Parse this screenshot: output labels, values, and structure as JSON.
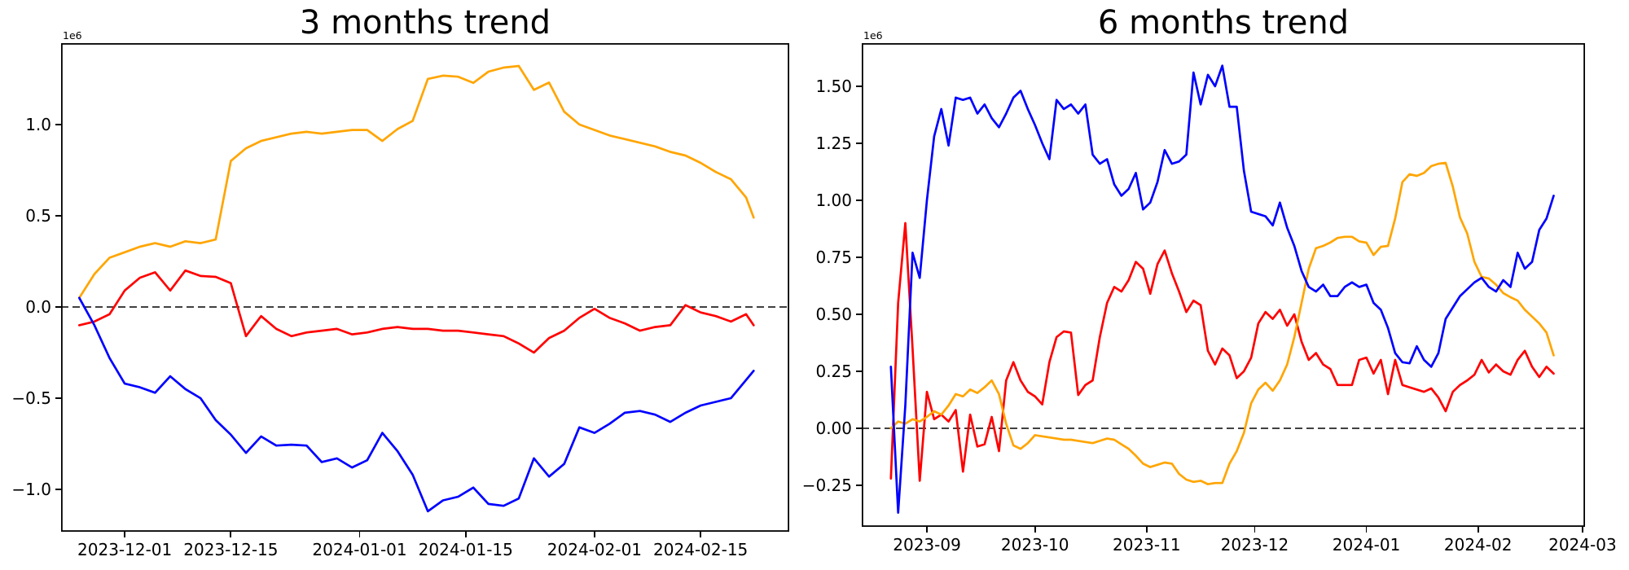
{
  "figure": {
    "background": "#ffffff"
  },
  "chart_data": [
    {
      "type": "line",
      "title": "3 months trend",
      "offset_label": "1e6",
      "x_unit": "days since 2023-11-25",
      "xlim": [
        -2.4,
        93.7
      ],
      "ylim": [
        -1.232,
        1.446
      ],
      "grid": false,
      "legend": null,
      "zero_line": {
        "y": 0,
        "style": "dashed",
        "color": "#000000"
      },
      "x": [
        0,
        2,
        4,
        6,
        8,
        10,
        12,
        14,
        16,
        18,
        20,
        22,
        24,
        26,
        28,
        30,
        32,
        34,
        36,
        38,
        40,
        42,
        44,
        46,
        48,
        50,
        52,
        54,
        56,
        58,
        60,
        62,
        64,
        66,
        68,
        70,
        72,
        74,
        76,
        78,
        80,
        82,
        84,
        86,
        88,
        89
      ],
      "series": [
        {
          "name": "red",
          "color": "#ff0000",
          "values": [
            -0.1,
            -0.08,
            -0.04,
            0.09,
            0.16,
            0.19,
            0.09,
            0.2,
            0.17,
            0.165,
            0.13,
            -0.16,
            -0.05,
            -0.12,
            -0.16,
            -0.14,
            -0.13,
            -0.12,
            -0.15,
            -0.14,
            -0.12,
            -0.11,
            -0.12,
            -0.12,
            -0.13,
            -0.13,
            -0.14,
            -0.15,
            -0.16,
            -0.2,
            -0.25,
            -0.17,
            -0.13,
            -0.06,
            -0.01,
            -0.06,
            -0.09,
            -0.13,
            -0.11,
            -0.1,
            0.01,
            -0.03,
            -0.05,
            -0.08,
            -0.04,
            -0.1
          ]
        },
        {
          "name": "orange",
          "color": "#ffa500",
          "values": [
            0.05,
            0.18,
            0.27,
            0.3,
            0.33,
            0.35,
            0.33,
            0.36,
            0.35,
            0.37,
            0.8,
            0.87,
            0.91,
            0.93,
            0.95,
            0.96,
            0.95,
            0.96,
            0.97,
            0.97,
            0.91,
            0.975,
            1.02,
            1.25,
            1.268,
            1.262,
            1.228,
            1.29,
            1.312,
            1.321,
            1.19,
            1.23,
            1.07,
            1.0,
            0.97,
            0.94,
            0.92,
            0.9,
            0.88,
            0.85,
            0.83,
            0.79,
            0.74,
            0.7,
            0.6,
            0.49
          ]
        },
        {
          "name": "blue",
          "color": "#0000ff",
          "values": [
            0.05,
            -0.1,
            -0.28,
            -0.42,
            -0.44,
            -0.47,
            -0.38,
            -0.45,
            -0.5,
            -0.62,
            -0.7,
            -0.8,
            -0.71,
            -0.76,
            -0.755,
            -0.76,
            -0.85,
            -0.83,
            -0.88,
            -0.84,
            -0.69,
            -0.79,
            -0.92,
            -1.12,
            -1.06,
            -1.04,
            -0.99,
            -1.08,
            -1.09,
            -1.05,
            -0.83,
            -0.93,
            -0.86,
            -0.66,
            -0.69,
            -0.64,
            -0.58,
            -0.57,
            -0.59,
            -0.63,
            -0.58,
            -0.54,
            -0.52,
            -0.5,
            -0.4,
            -0.35
          ]
        }
      ],
      "xticks": [
        {
          "label": "2023-12-01",
          "x": 6
        },
        {
          "label": "2023-12-15",
          "x": 20
        },
        {
          "label": "2024-01-01",
          "x": 37
        },
        {
          "label": "2024-01-15",
          "x": 51
        },
        {
          "label": "2024-02-01",
          "x": 68
        },
        {
          "label": "2024-02-15",
          "x": 82
        }
      ],
      "yticks": [
        {
          "label": "1.0",
          "y": 1.0
        },
        {
          "label": "0.5",
          "y": 0.5
        },
        {
          "label": "0.0",
          "y": 0.0
        },
        {
          "label": "−0.5",
          "y": -0.5
        },
        {
          "label": "−1.0",
          "y": -1.0
        }
      ]
    },
    {
      "type": "line",
      "title": "6 months trend",
      "offset_label": "1e6",
      "x_unit": "days since 2023-08-22",
      "xlim": [
        -8.1,
        192.7
      ],
      "ylim": [
        -0.432,
        1.689
      ],
      "grid": false,
      "legend": null,
      "zero_line": {
        "y": 0,
        "style": "dashed",
        "color": "#000000"
      },
      "x": [
        0,
        2,
        4,
        6,
        8,
        10,
        12,
        14,
        16,
        18,
        20,
        22,
        24,
        26,
        28,
        30,
        32,
        34,
        36,
        38,
        40,
        42,
        44,
        46,
        48,
        50,
        52,
        54,
        56,
        58,
        60,
        62,
        64,
        66,
        68,
        70,
        72,
        74,
        76,
        78,
        80,
        82,
        84,
        86,
        88,
        90,
        92,
        94,
        96,
        98,
        100,
        102,
        104,
        106,
        108,
        110,
        112,
        114,
        116,
        118,
        120,
        122,
        124,
        126,
        128,
        130,
        132,
        134,
        136,
        138,
        140,
        142,
        144,
        146,
        148,
        150,
        152,
        154,
        156,
        158,
        160,
        162,
        164,
        166,
        168,
        170,
        172,
        174,
        176,
        178,
        180,
        182,
        184
      ],
      "series": [
        {
          "name": "red",
          "color": "#ff0000",
          "values": [
            -0.22,
            0.55,
            0.9,
            0.35,
            -0.23,
            0.16,
            0.04,
            0.06,
            0.03,
            0.08,
            -0.19,
            0.06,
            -0.08,
            -0.07,
            0.05,
            -0.1,
            0.21,
            0.29,
            0.21,
            0.16,
            0.14,
            0.105,
            0.29,
            0.4,
            0.425,
            0.42,
            0.146,
            0.19,
            0.21,
            0.4,
            0.55,
            0.62,
            0.6,
            0.65,
            0.73,
            0.7,
            0.59,
            0.72,
            0.78,
            0.68,
            0.6,
            0.51,
            0.56,
            0.54,
            0.34,
            0.28,
            0.35,
            0.32,
            0.22,
            0.25,
            0.31,
            0.46,
            0.51,
            0.48,
            0.52,
            0.45,
            0.5,
            0.38,
            0.3,
            0.33,
            0.28,
            0.26,
            0.19,
            0.19,
            0.19,
            0.3,
            0.31,
            0.24,
            0.3,
            0.15,
            0.3,
            0.19,
            0.18,
            0.17,
            0.16,
            0.175,
            0.135,
            0.075,
            0.16,
            0.19,
            0.21,
            0.235,
            0.3,
            0.245,
            0.28,
            0.25,
            0.235,
            0.3,
            0.34,
            0.27,
            0.225,
            0.27,
            0.24
          ]
        },
        {
          "name": "orange",
          "color": "#ffa500",
          "values": [
            0.0,
            0.03,
            0.02,
            0.04,
            0.03,
            0.05,
            0.075,
            0.06,
            0.1,
            0.15,
            0.14,
            0.17,
            0.155,
            0.18,
            0.21,
            0.15,
            0.02,
            -0.075,
            -0.09,
            -0.065,
            -0.03,
            -0.035,
            -0.04,
            -0.045,
            -0.05,
            -0.05,
            -0.055,
            -0.06,
            -0.065,
            -0.055,
            -0.045,
            -0.05,
            -0.07,
            -0.09,
            -0.12,
            -0.155,
            -0.17,
            -0.16,
            -0.15,
            -0.155,
            -0.2,
            -0.225,
            -0.235,
            -0.23,
            -0.245,
            -0.24,
            -0.24,
            -0.155,
            -0.1,
            -0.02,
            0.11,
            0.17,
            0.2,
            0.165,
            0.21,
            0.28,
            0.4,
            0.55,
            0.7,
            0.79,
            0.8,
            0.815,
            0.835,
            0.84,
            0.84,
            0.82,
            0.814,
            0.76,
            0.796,
            0.8,
            0.92,
            1.08,
            1.114,
            1.107,
            1.12,
            1.15,
            1.16,
            1.164,
            1.06,
            0.925,
            0.854,
            0.73,
            0.664,
            0.657,
            0.63,
            0.593,
            0.575,
            0.56,
            0.52,
            0.49,
            0.46,
            0.42,
            0.32
          ]
        },
        {
          "name": "blue",
          "color": "#0000ff",
          "values": [
            0.27,
            -0.37,
            0.1,
            0.77,
            0.66,
            1.0,
            1.28,
            1.4,
            1.24,
            1.45,
            1.44,
            1.45,
            1.38,
            1.42,
            1.36,
            1.32,
            1.38,
            1.45,
            1.48,
            1.4,
            1.33,
            1.25,
            1.18,
            1.44,
            1.4,
            1.42,
            1.38,
            1.42,
            1.2,
            1.16,
            1.18,
            1.07,
            1.02,
            1.05,
            1.12,
            0.96,
            0.99,
            1.08,
            1.22,
            1.16,
            1.17,
            1.2,
            1.56,
            1.42,
            1.55,
            1.5,
            1.59,
            1.41,
            1.41,
            1.13,
            0.95,
            0.94,
            0.93,
            0.89,
            0.99,
            0.88,
            0.8,
            0.69,
            0.62,
            0.6,
            0.63,
            0.58,
            0.58,
            0.62,
            0.64,
            0.62,
            0.63,
            0.55,
            0.52,
            0.44,
            0.33,
            0.29,
            0.285,
            0.36,
            0.3,
            0.27,
            0.33,
            0.48,
            0.53,
            0.58,
            0.61,
            0.64,
            0.66,
            0.62,
            0.6,
            0.65,
            0.62,
            0.77,
            0.7,
            0.73,
            0.87,
            0.92,
            1.02
          ]
        }
      ],
      "xticks": [
        {
          "label": "2023-09",
          "x": 10
        },
        {
          "label": "2023-10",
          "x": 40
        },
        {
          "label": "2023-11",
          "x": 71
        },
        {
          "label": "2023-12",
          "x": 101
        },
        {
          "label": "2024-01",
          "x": 132
        },
        {
          "label": "2024-02",
          "x": 163
        },
        {
          "label": "2024-03",
          "x": 192
        }
      ],
      "yticks": [
        {
          "label": "1.50",
          "y": 1.5
        },
        {
          "label": "1.25",
          "y": 1.25
        },
        {
          "label": "1.00",
          "y": 1.0
        },
        {
          "label": "0.75",
          "y": 0.75
        },
        {
          "label": "0.50",
          "y": 0.5
        },
        {
          "label": "0.25",
          "y": 0.25
        },
        {
          "label": "0.00",
          "y": 0.0
        },
        {
          "label": "−0.25",
          "y": -0.25
        }
      ]
    }
  ]
}
